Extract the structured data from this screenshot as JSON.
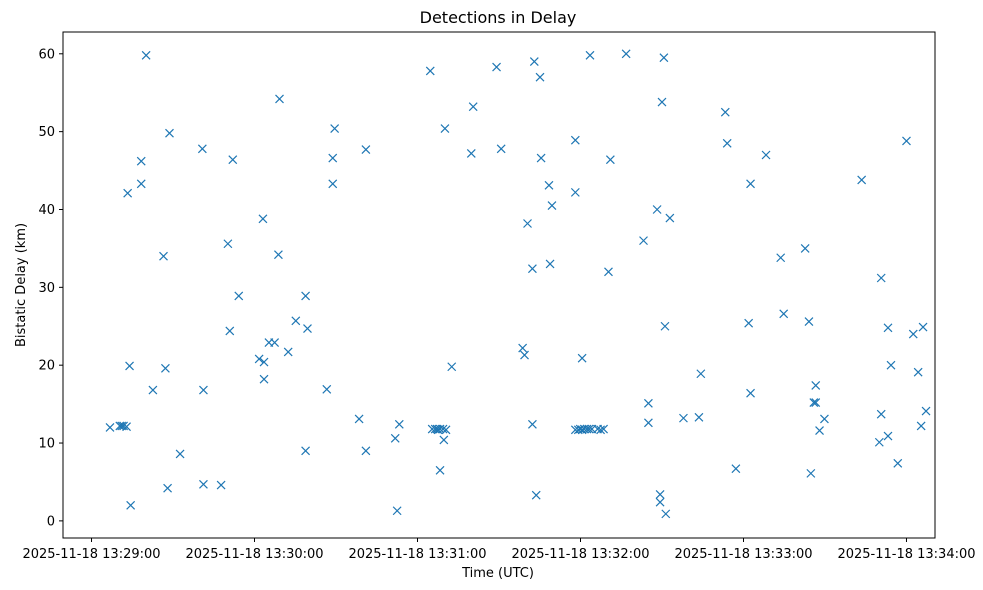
{
  "chart_data": {
    "type": "scatter",
    "title": "Detections in Delay",
    "xlabel": "Time (UTC)",
    "ylabel": "Bistatic Delay (km)",
    "marker": "x",
    "marker_color": "#1f77b4",
    "xlim_seconds_from_13_29_00": [
      -10.5,
      310.5
    ],
    "ylim": [
      -2.2,
      62.8
    ],
    "x_ticks": [
      {
        "value": 0,
        "label": "2025-11-18 13:29:00"
      },
      {
        "value": 60,
        "label": "2025-11-18 13:30:00"
      },
      {
        "value": 120,
        "label": "2025-11-18 13:31:00"
      },
      {
        "value": 180,
        "label": "2025-11-18 13:32:00"
      },
      {
        "value": 240,
        "label": "2025-11-18 13:33:00"
      },
      {
        "value": 300,
        "label": "2025-11-18 13:34:00"
      }
    ],
    "y_ticks": [
      {
        "value": 0,
        "label": "0"
      },
      {
        "value": 10,
        "label": "10"
      },
      {
        "value": 20,
        "label": "20"
      },
      {
        "value": 30,
        "label": "30"
      },
      {
        "value": 40,
        "label": "40"
      },
      {
        "value": 50,
        "label": "50"
      },
      {
        "value": 60,
        "label": "60"
      }
    ],
    "series": [
      {
        "name": "Detections",
        "points": [
          [
            6.8,
            12.0
          ],
          [
            10.4,
            12.2
          ],
          [
            11.1,
            12.2
          ],
          [
            11.8,
            12.2
          ],
          [
            12.9,
            12.1
          ],
          [
            13.3,
            42.1
          ],
          [
            14.0,
            19.9
          ],
          [
            14.4,
            2.0
          ],
          [
            18.3,
            46.2
          ],
          [
            18.3,
            43.3
          ],
          [
            20.1,
            59.8
          ],
          [
            22.6,
            16.8
          ],
          [
            26.5,
            34.0
          ],
          [
            27.2,
            19.6
          ],
          [
            28.0,
            4.2
          ],
          [
            28.7,
            49.8
          ],
          [
            32.6,
            8.6
          ],
          [
            40.8,
            47.8
          ],
          [
            41.2,
            16.8
          ],
          [
            41.2,
            4.7
          ],
          [
            47.7,
            4.6
          ],
          [
            50.2,
            35.6
          ],
          [
            50.9,
            24.4
          ],
          [
            52.0,
            46.4
          ],
          [
            54.2,
            28.9
          ],
          [
            61.7,
            20.8
          ],
          [
            63.1,
            38.8
          ],
          [
            63.5,
            20.4
          ],
          [
            63.5,
            18.2
          ],
          [
            65.3,
            22.9
          ],
          [
            67.4,
            22.9
          ],
          [
            68.8,
            34.2
          ],
          [
            69.2,
            54.2
          ],
          [
            72.4,
            21.7
          ],
          [
            75.2,
            25.7
          ],
          [
            78.8,
            9.0
          ],
          [
            78.8,
            28.9
          ],
          [
            79.5,
            24.7
          ],
          [
            86.6,
            16.9
          ],
          [
            88.8,
            46.6
          ],
          [
            88.8,
            43.3
          ],
          [
            89.5,
            50.4
          ],
          [
            98.5,
            13.1
          ],
          [
            101.0,
            9.0
          ],
          [
            101.0,
            47.7
          ],
          [
            111.8,
            10.6
          ],
          [
            112.5,
            1.3
          ],
          [
            113.3,
            12.4
          ],
          [
            124.7,
            57.8
          ],
          [
            125.4,
            11.8
          ],
          [
            126.5,
            11.8
          ],
          [
            127.2,
            11.8
          ],
          [
            127.6,
            11.7
          ],
          [
            128.3,
            11.8
          ],
          [
            128.3,
            6.5
          ],
          [
            129.4,
            11.8
          ],
          [
            129.7,
            10.4
          ],
          [
            130.1,
            50.4
          ],
          [
            130.5,
            11.7
          ],
          [
            132.6,
            19.8
          ],
          [
            139.8,
            47.2
          ],
          [
            140.5,
            53.2
          ],
          [
            149.1,
            58.3
          ],
          [
            150.8,
            47.8
          ],
          [
            158.7,
            22.2
          ],
          [
            159.4,
            21.3
          ],
          [
            160.5,
            38.2
          ],
          [
            162.3,
            32.4
          ],
          [
            162.3,
            12.4
          ],
          [
            163.0,
            59.0
          ],
          [
            163.7,
            3.3
          ],
          [
            165.1,
            57.0
          ],
          [
            165.5,
            46.6
          ],
          [
            168.4,
            43.1
          ],
          [
            168.8,
            33.0
          ],
          [
            169.5,
            40.5
          ],
          [
            178.1,
            11.7
          ],
          [
            178.1,
            48.9
          ],
          [
            178.1,
            42.2
          ],
          [
            179.2,
            11.7
          ],
          [
            179.9,
            11.8
          ],
          [
            180.6,
            11.7
          ],
          [
            180.6,
            20.9
          ],
          [
            181.4,
            11.8
          ],
          [
            182.4,
            11.8
          ],
          [
            183.2,
            11.8
          ],
          [
            183.5,
            59.8
          ],
          [
            184.2,
            11.8
          ],
          [
            186.3,
            11.8
          ],
          [
            187.4,
            11.7
          ],
          [
            188.5,
            11.8
          ],
          [
            190.3,
            32.0
          ],
          [
            191.0,
            46.4
          ],
          [
            196.8,
            60.0
          ],
          [
            203.2,
            36.0
          ],
          [
            205.0,
            15.1
          ],
          [
            205.0,
            12.6
          ],
          [
            208.2,
            40.0
          ],
          [
            209.3,
            3.4
          ],
          [
            209.3,
            2.4
          ],
          [
            210.0,
            53.8
          ],
          [
            210.7,
            59.5
          ],
          [
            211.1,
            25.0
          ],
          [
            211.4,
            0.9
          ],
          [
            212.9,
            38.9
          ],
          [
            217.9,
            13.2
          ],
          [
            223.6,
            13.3
          ],
          [
            224.3,
            18.9
          ],
          [
            233.3,
            52.5
          ],
          [
            234.0,
            48.5
          ],
          [
            237.2,
            6.7
          ],
          [
            241.9,
            25.4
          ],
          [
            242.6,
            16.4
          ],
          [
            242.6,
            43.3
          ],
          [
            248.3,
            47.0
          ],
          [
            253.7,
            33.8
          ],
          [
            254.8,
            26.6
          ],
          [
            262.7,
            35.0
          ],
          [
            264.1,
            25.6
          ],
          [
            264.8,
            6.1
          ],
          [
            265.9,
            15.2
          ],
          [
            266.6,
            15.2
          ],
          [
            266.6,
            17.4
          ],
          [
            268.0,
            11.6
          ],
          [
            269.8,
            13.1
          ],
          [
            283.5,
            43.8
          ],
          [
            290.0,
            10.1
          ],
          [
            290.7,
            13.7
          ],
          [
            290.7,
            31.2
          ],
          [
            293.2,
            10.9
          ],
          [
            293.2,
            24.8
          ],
          [
            294.3,
            20.0
          ],
          [
            296.8,
            7.4
          ],
          [
            300.0,
            48.8
          ],
          [
            302.5,
            24.0
          ],
          [
            304.3,
            19.1
          ],
          [
            305.4,
            12.2
          ],
          [
            306.1,
            24.9
          ],
          [
            307.2,
            14.1
          ]
        ]
      }
    ]
  }
}
